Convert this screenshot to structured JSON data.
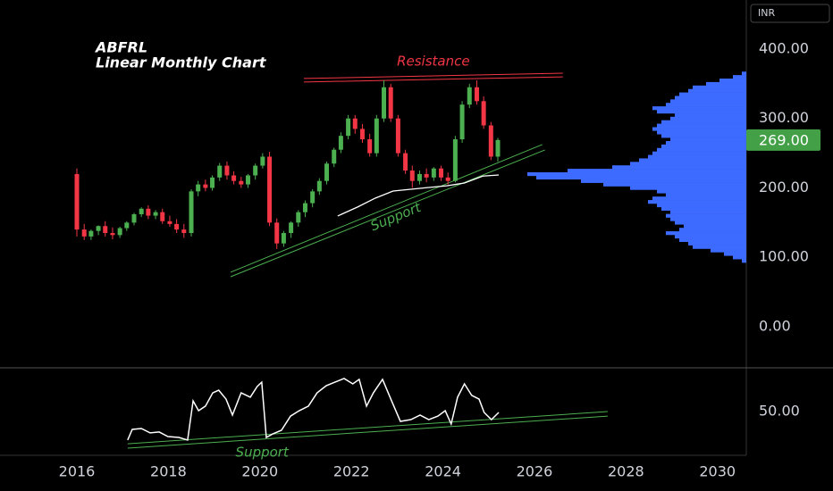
{
  "chart_data": {
    "type": "candlestick",
    "title": "ABFRL",
    "subtitle": "Linear Monthly Chart",
    "currency": "INR",
    "up_color": "#4caf50",
    "down_color": "#f23645",
    "x": [
      2016.0,
      2016.16,
      2016.31,
      2016.47,
      2016.62,
      2016.78,
      2016.94,
      2017.09,
      2017.25,
      2017.41,
      2017.56,
      2017.72,
      2017.87,
      2018.03,
      2018.18,
      2018.34,
      2018.5,
      2018.65,
      2018.81,
      2018.96,
      2019.12,
      2019.28,
      2019.43,
      2019.59,
      2019.74,
      2019.9,
      2020.06,
      2020.21,
      2020.37,
      2020.52,
      2020.68,
      2020.84,
      2020.99,
      2021.15,
      2021.3,
      2021.46,
      2021.62,
      2021.77,
      2021.93,
      2022.08,
      2022.24,
      2022.4,
      2022.55,
      2022.71,
      2022.86,
      2023.02,
      2023.18,
      2023.33,
      2023.49,
      2023.64,
      2023.8,
      2023.96,
      2024.11,
      2024.27,
      2024.42,
      2024.58,
      2024.74,
      2024.89,
      2025.05,
      2025.2
    ],
    "open": [
      220,
      140,
      130,
      138,
      145,
      135,
      132,
      142,
      150,
      162,
      170,
      160,
      165,
      152,
      148,
      140,
      135,
      195,
      205,
      200,
      215,
      232,
      218,
      210,
      205,
      218,
      232,
      245,
      150,
      120,
      135,
      150,
      165,
      178,
      195,
      210,
      235,
      255,
      275,
      300,
      285,
      270,
      250,
      300,
      345,
      300,
      250,
      225,
      210,
      220,
      215,
      228,
      215,
      210,
      270,
      320,
      345,
      325,
      290,
      245
    ],
    "high": [
      228,
      148,
      140,
      146,
      152,
      143,
      144,
      152,
      164,
      172,
      175,
      168,
      170,
      160,
      155,
      148,
      198,
      210,
      212,
      218,
      236,
      238,
      224,
      216,
      220,
      235,
      250,
      252,
      156,
      138,
      152,
      168,
      182,
      198,
      214,
      238,
      258,
      280,
      305,
      305,
      292,
      278,
      305,
      355,
      350,
      305,
      255,
      232,
      225,
      228,
      230,
      232,
      222,
      275,
      325,
      350,
      355,
      332,
      295,
      272
    ],
    "low": [
      130,
      125,
      125,
      132,
      130,
      126,
      128,
      138,
      146,
      158,
      155,
      155,
      148,
      144,
      135,
      128,
      130,
      188,
      195,
      196,
      210,
      212,
      205,
      200,
      200,
      212,
      228,
      145,
      112,
      115,
      128,
      144,
      158,
      172,
      190,
      205,
      230,
      250,
      270,
      278,
      265,
      245,
      245,
      295,
      295,
      245,
      220,
      200,
      205,
      208,
      210,
      210,
      205,
      208,
      265,
      315,
      320,
      285,
      240,
      238
    ],
    "close": [
      140,
      130,
      138,
      145,
      135,
      132,
      142,
      150,
      162,
      170,
      160,
      165,
      152,
      148,
      140,
      135,
      195,
      205,
      200,
      215,
      232,
      218,
      210,
      205,
      218,
      232,
      245,
      150,
      120,
      135,
      150,
      165,
      178,
      195,
      210,
      235,
      255,
      275,
      300,
      285,
      270,
      250,
      300,
      345,
      300,
      250,
      225,
      210,
      220,
      215,
      228,
      215,
      210,
      270,
      320,
      345,
      325,
      290,
      245,
      269
    ],
    "xlim": [
      2014.32,
      2030.63
    ],
    "ylim": [
      -59.2,
      470.7
    ],
    "xticks": [
      2016,
      2018,
      2020,
      2022,
      2024,
      2026,
      2028,
      2030
    ],
    "yticks": [
      {
        "value": 0,
        "label": "0.00"
      },
      {
        "value": 100,
        "label": "100.00"
      },
      {
        "value": 200,
        "label": "200.00"
      },
      {
        "value": 300,
        "label": "300.00"
      },
      {
        "value": 400,
        "label": "400.00"
      }
    ],
    "last_price": {
      "value": 269,
      "label": "269.00",
      "color": "#43a047"
    },
    "volume_profile": {
      "color": "#3d6bff",
      "prices": [
        95,
        100,
        105,
        110,
        115,
        120,
        125,
        130,
        135,
        140,
        145,
        150,
        155,
        160,
        165,
        170,
        175,
        180,
        185,
        190,
        195,
        200,
        205,
        210,
        215,
        220,
        225,
        230,
        235,
        240,
        245,
        250,
        255,
        260,
        265,
        270,
        275,
        280,
        285,
        290,
        295,
        300,
        305,
        310,
        315,
        320,
        325,
        330,
        335,
        340,
        345,
        350,
        355,
        360,
        365
      ],
      "values": [
        5,
        15,
        25,
        40,
        60,
        65,
        75,
        80,
        90,
        75,
        70,
        80,
        85,
        90,
        85,
        95,
        100,
        110,
        105,
        90,
        100,
        130,
        160,
        185,
        235,
        245,
        200,
        150,
        130,
        120,
        110,
        105,
        100,
        95,
        90,
        85,
        95,
        100,
        105,
        100,
        95,
        85,
        80,
        100,
        105,
        90,
        85,
        80,
        75,
        65,
        60,
        45,
        30,
        15,
        5
      ]
    },
    "moving_average": {
      "color": "#ffffff",
      "x": [
        2021.7,
        2022.13,
        2022.52,
        2022.91,
        2023.3,
        2023.69,
        2024.08,
        2024.47,
        2024.87,
        2025.22
      ],
      "values": [
        159.5,
        172.3,
        185.2,
        195.5,
        198,
        200.6,
        203,
        207,
        217,
        218.6
      ]
    },
    "trendlines": [
      {
        "name": "Resistance",
        "color": "#f23645",
        "lines": [
          {
            "x": [
              2020.96,
              2026.62
            ],
            "y": [
              357.6,
              365.3
            ]
          },
          {
            "x": [
              2020.96,
              2026.62
            ],
            "y": [
              352.5,
              360.0
            ]
          }
        ]
      },
      {
        "name": "Support",
        "color": "#4caf50",
        "lines": [
          {
            "x": [
              2019.36,
              2026.17
            ],
            "y": [
              78.5,
              262.4
            ]
          },
          {
            "x": [
              2019.36,
              2026.23
            ],
            "y": [
              72.0,
              254.7
            ]
          }
        ]
      }
    ],
    "indicator": {
      "color": "#ffffff",
      "y2lim": [
        25,
        75
      ],
      "y2ticks": [
        {
          "value": 50,
          "label": "50.00"
        }
      ],
      "x": [
        2017.11,
        2017.21,
        2017.41,
        2017.6,
        2017.8,
        2017.99,
        2018.23,
        2018.42,
        2018.54,
        2018.66,
        2018.81,
        2018.97,
        2019.1,
        2019.26,
        2019.4,
        2019.59,
        2019.79,
        2019.94,
        2020.04,
        2020.14,
        2020.28,
        2020.47,
        2020.67,
        2020.86,
        2021.06,
        2021.25,
        2021.45,
        2021.64,
        2021.84,
        2022.03,
        2022.17,
        2022.33,
        2022.48,
        2022.68,
        2022.87,
        2023.07,
        2023.3,
        2023.5,
        2023.69,
        2023.89,
        2024.05,
        2024.18,
        2024.32,
        2024.47,
        2024.63,
        2024.79,
        2024.9,
        2025.06,
        2025.22
      ],
      "values": [
        33.7,
        39.8,
        40.3,
        37.8,
        38.3,
        35.7,
        35.2,
        33.7,
        56.1,
        50.5,
        53.1,
        60.7,
        62.2,
        57.1,
        48.0,
        60.7,
        58.2,
        64.3,
        66.8,
        35.2,
        37.2,
        39.3,
        47.4,
        50.5,
        53.1,
        60.7,
        64.8,
        66.8,
        68.9,
        65.8,
        68.4,
        53.1,
        60.7,
        68.4,
        56.6,
        44.4,
        45.4,
        48.0,
        45.4,
        47.4,
        50.5,
        42.9,
        58.2,
        65.8,
        59.2,
        57.1,
        49.5,
        45.4,
        49.5
      ],
      "trendline": {
        "name": "Support",
        "color": "#4caf50",
        "lines": [
          {
            "x": [
              2017.11,
              2027.6
            ],
            "y": [
              31.6,
              50.0
            ]
          },
          {
            "x": [
              2017.11,
              2027.6
            ],
            "y": [
              29.1,
              47.4
            ]
          }
        ]
      }
    }
  }
}
